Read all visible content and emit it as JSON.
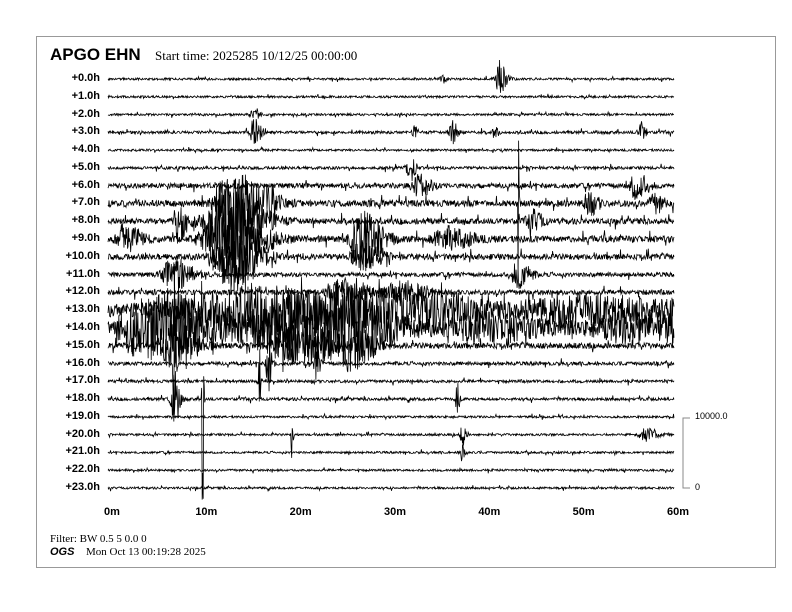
{
  "header": {
    "station": "APGO EHN",
    "start_time": "Start time: 2025285 10/12/25 00:00:00"
  },
  "footer": {
    "filter": "Filter: BW 0.5 5 0.0 0",
    "org": "OGS",
    "timestamp": "Mon Oct 13 00:19:28 2025"
  },
  "chart_data": {
    "type": "line",
    "subtype": "helicorder",
    "row_labels": [
      "+0.0h",
      "+1.0h",
      "+2.0h",
      "+3.0h",
      "+4.0h",
      "+5.0h",
      "+6.0h",
      "+7.0h",
      "+8.0h",
      "+9.0h",
      "+10.0h",
      "+11.0h",
      "+12.0h",
      "+13.0h",
      "+14.0h",
      "+15.0h",
      "+16.0h",
      "+17.0h",
      "+18.0h",
      "+19.0h",
      "+20.0h",
      "+21.0h",
      "+22.0h",
      "+23.0h"
    ],
    "x_tick_labels": [
      "0m",
      "10m",
      "20m",
      "30m",
      "40m",
      "50m",
      "60m"
    ],
    "xlim": [
      0,
      60
    ],
    "scale": {
      "max_label": "10000.0",
      "min_label": "0",
      "max": 10000
    },
    "trace_color": "#000000",
    "noise_counts": [
      150,
      150,
      150,
      200,
      150,
      200,
      350,
      450,
      400,
      450,
      400,
      300,
      350,
      900,
      1000,
      400,
      250,
      200,
      200,
      150,
      150,
      150,
      150,
      150
    ],
    "events": [
      [
        0,
        41.5,
        2500,
        0.6
      ],
      [
        0,
        35.5,
        500,
        0.4
      ],
      [
        2,
        15.5,
        900,
        0.5
      ],
      [
        3,
        15.5,
        2000,
        0.6
      ],
      [
        3,
        36.5,
        1500,
        0.5
      ],
      [
        3,
        32.5,
        800,
        0.3
      ],
      [
        3,
        56.5,
        1400,
        0.4
      ],
      [
        3,
        41,
        900,
        0.3
      ],
      [
        5,
        32,
        1500,
        0.5
      ],
      [
        6,
        33,
        1500,
        1.0
      ],
      [
        6,
        56,
        1800,
        1.0
      ],
      [
        7,
        43.5,
        50000,
        0.05
      ],
      [
        7,
        13.5,
        4000,
        2.5
      ],
      [
        7,
        17,
        1500,
        0.8
      ],
      [
        7,
        51,
        1500,
        0.8
      ],
      [
        7,
        58,
        1200,
        0.8
      ],
      [
        8,
        12.5,
        6000,
        2.8
      ],
      [
        8,
        7.5,
        2500,
        0.8
      ],
      [
        8,
        45,
        1500,
        0.8
      ],
      [
        9,
        12.5,
        7000,
        2.8
      ],
      [
        9,
        27,
        3500,
        1.8
      ],
      [
        9,
        2,
        1500,
        1.5
      ],
      [
        9,
        36,
        1500,
        2.0
      ],
      [
        10,
        13,
        5000,
        2.2
      ],
      [
        10,
        27,
        2000,
        1.5
      ],
      [
        11,
        7,
        2500,
        1.5
      ],
      [
        11,
        43.5,
        2000,
        1.0
      ],
      [
        12,
        25,
        2000,
        2.0
      ],
      [
        12,
        31,
        1500,
        2.0
      ],
      [
        13,
        15,
        2500,
        10
      ],
      [
        13,
        28,
        1500,
        6
      ],
      [
        13,
        50,
        1800,
        8
      ],
      [
        13,
        35,
        1500,
        3
      ],
      [
        14,
        20,
        4500,
        7
      ],
      [
        14,
        7,
        3500,
        3
      ],
      [
        14,
        3,
        3000,
        3
      ],
      [
        14,
        26,
        2500,
        2
      ],
      [
        14,
        40,
        1500,
        4
      ],
      [
        14,
        56,
        1800,
        5
      ],
      [
        15,
        7,
        3000,
        2
      ],
      [
        15,
        20,
        2500,
        3
      ],
      [
        15,
        27,
        1800,
        1.5
      ],
      [
        16,
        7,
        25000,
        0.15
      ],
      [
        16,
        17,
        5000,
        0.3
      ],
      [
        16,
        22,
        4000,
        0.3
      ],
      [
        17,
        16,
        6000,
        0.15
      ],
      [
        18,
        10,
        25000,
        0.1
      ],
      [
        18,
        7,
        4000,
        0.5
      ],
      [
        18,
        37,
        2500,
        0.2
      ],
      [
        20,
        19.5,
        15000,
        0.08
      ],
      [
        20,
        37.5,
        1800,
        0.3
      ],
      [
        20,
        57,
        900,
        1.0
      ],
      [
        21,
        37.5,
        1500,
        0.3
      ]
    ]
  }
}
